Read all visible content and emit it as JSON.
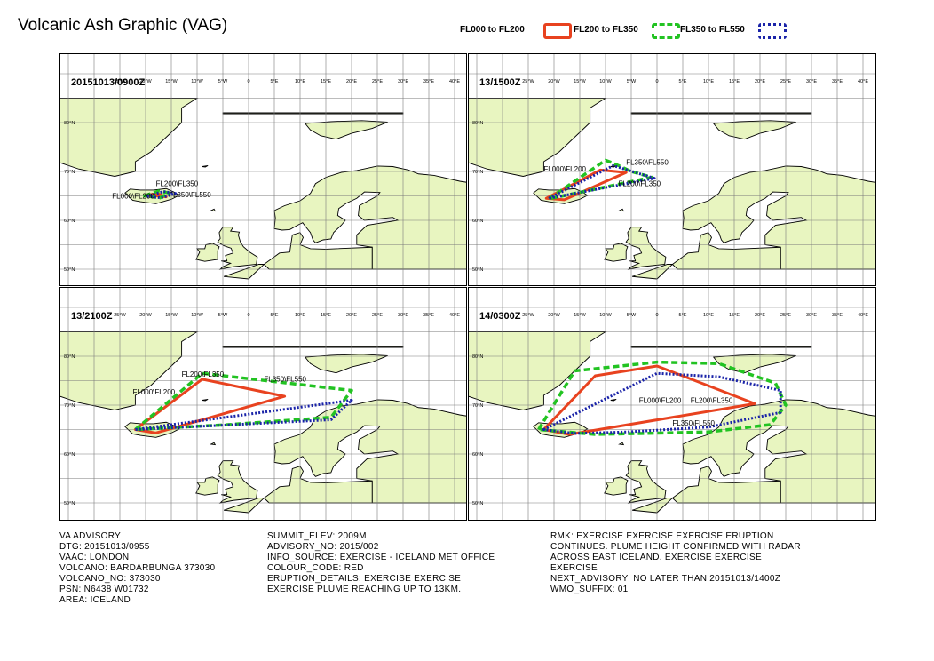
{
  "title": "Volcanic Ash Graphic (VAG)",
  "legend": [
    {
      "label": "FL000 to FL200",
      "color": "#e8421f",
      "style": "solid"
    },
    {
      "label": "FL200 to FL350",
      "color": "#22c322",
      "style": "dashed"
    },
    {
      "label": "FL350 to FL550",
      "color": "#1a23a8",
      "style": "dotted"
    }
  ],
  "map": {
    "lon_labels": [
      "25°W",
      "20°W",
      "15°W",
      "10°W",
      "5°W",
      "0",
      "5°E",
      "10°E",
      "15°E",
      "20°E",
      "25°E",
      "30°E",
      "35°E",
      "40°E"
    ],
    "lat_labels": [
      "80°N",
      "70°N",
      "60°N",
      "50°N"
    ],
    "land_color": "#e8f5c0",
    "sea_color": "#ffffff"
  },
  "panels": [
    {
      "dtg": "20151013/0900Z",
      "labels": [
        {
          "text": "FL200\\FL350",
          "lon": -18.0,
          "lat": 67.0
        },
        {
          "text": "FL000\\FL200",
          "lon": -26.5,
          "lat": 64.5
        },
        {
          "text": "FL350\\FL550",
          "lon": -15.5,
          "lat": 64.7
        }
      ],
      "polys": [
        {
          "level": 0,
          "pts": [
            [
              -20,
              65.2
            ],
            [
              -17.5,
              65.4
            ],
            [
              -16,
              64.8
            ]
          ]
        },
        {
          "level": 1,
          "pts": [
            [
              -20.2,
              65.0
            ],
            [
              -17.5,
              66.0
            ],
            [
              -15.5,
              65.6
            ],
            [
              -17.2,
              64.6
            ]
          ]
        },
        {
          "level": 2,
          "pts": [
            [
              -19.8,
              64.9
            ],
            [
              -16.5,
              65.9
            ],
            [
              -14.2,
              65.5
            ],
            [
              -17.0,
              64.6
            ]
          ]
        }
      ]
    },
    {
      "dtg": "13/1500Z",
      "labels": [
        {
          "text": "FL350\\FL550",
          "lon": -6.0,
          "lat": 71.4
        },
        {
          "text": "FL000\\FL200",
          "lon": -22.0,
          "lat": 70.0
        },
        {
          "text": "FL200\\FL350",
          "lon": -7.5,
          "lat": 67.0
        }
      ],
      "polys": [
        {
          "level": 0,
          "pts": [
            [
              -21.5,
              64.5
            ],
            [
              -18,
              64.2
            ],
            [
              -6,
              69.8
            ],
            [
              -11,
              70.3
            ]
          ]
        },
        {
          "level": 1,
          "pts": [
            [
              -21,
              64.4
            ],
            [
              -10,
              72.3
            ],
            [
              -8.5,
              71.7
            ],
            [
              -5,
              70.0
            ],
            [
              -1,
              68.8
            ]
          ]
        },
        {
          "level": 2,
          "pts": [
            [
              -21,
              64.5
            ],
            [
              -8.5,
              71.2
            ],
            [
              -0.5,
              68.6
            ]
          ]
        }
      ]
    },
    {
      "dtg": "13/2100Z",
      "labels": [
        {
          "text": "FL200\\FL350",
          "lon": -13.0,
          "lat": 75.8
        },
        {
          "text": "FL350\\FL550",
          "lon": 3.0,
          "lat": 74.8
        },
        {
          "text": "FL000\\FL200",
          "lon": -22.5,
          "lat": 72.2
        }
      ],
      "polys": [
        {
          "level": 0,
          "pts": [
            [
              -22,
              65.0
            ],
            [
              -18,
              64.3
            ],
            [
              7,
              71.8
            ],
            [
              -9,
              75.3
            ]
          ]
        },
        {
          "level": 1,
          "pts": [
            [
              -22,
              65.0
            ],
            [
              -9,
              76.5
            ],
            [
              20,
              73.0
            ],
            [
              16,
              67.5
            ],
            [
              -4,
              66.0
            ]
          ]
        },
        {
          "level": 2,
          "pts": [
            [
              -22,
              65.0
            ],
            [
              20,
              71.0
            ],
            [
              16,
              67.0
            ]
          ]
        }
      ]
    },
    {
      "dtg": "14/0300Z",
      "labels": [
        {
          "text": "FL000\\FL200",
          "lon": -3.5,
          "lat": 70.5
        },
        {
          "text": "FL200\\FL350",
          "lon": 6.5,
          "lat": 70.5
        },
        {
          "text": "FL350\\FL550",
          "lon": 3.0,
          "lat": 65.8
        }
      ],
      "polys": [
        {
          "level": 0,
          "pts": [
            [
              -22,
              65.0
            ],
            [
              -17,
              64.0
            ],
            [
              19,
              70.3
            ],
            [
              0,
              78.0
            ],
            [
              -12,
              76.0
            ]
          ]
        },
        {
          "level": 1,
          "pts": [
            [
              -23,
              65.0
            ],
            [
              -16,
              77.0
            ],
            [
              0,
              78.8
            ],
            [
              12,
              78.5
            ],
            [
              23,
              74.5
            ],
            [
              25,
              70.0
            ],
            [
              22,
              66.0
            ],
            [
              10,
              64.5
            ],
            [
              -12,
              64.0
            ]
          ]
        },
        {
          "level": 2,
          "pts": [
            [
              -22,
              65.0
            ],
            [
              0,
              76.5
            ],
            [
              12,
              75.8
            ],
            [
              24,
              73.0
            ],
            [
              24,
              68.5
            ],
            [
              10,
              65.5
            ],
            [
              -6,
              64.5
            ],
            [
              -16,
              64.2
            ]
          ]
        }
      ]
    }
  ],
  "advisory_col1": [
    "VA ADVISORY",
    "DTG: 20151013/0955",
    "VAAC: LONDON",
    "VOLCANO: BARDARBUNGA 373030",
    "VOLCANO_NO: 373030",
    "PSN: N6438 W01732",
    "AREA: ICELAND"
  ],
  "advisory_col2": [
    "SUMMIT_ELEV: 2009M",
    "ADVISORY_NO: 2015/002",
    "INFO_SOURCE: EXERCISE - ICELAND MET OFFICE",
    "COLOUR_CODE: RED",
    "ERUPTION_DETAILS: EXERCISE  EXERCISE",
    "EXERCISE PLUME REACHING UP TO 13KM."
  ],
  "advisory_col3": [
    "RMK: EXERCISE  EXERCISE  EXERCISE ERUPTION",
    "CONTINUES. PLUME HEIGHT CONFIRMED WITH RADAR",
    "ACROSS EAST ICELAND.  EXERCISE EXERCISE",
    "EXERCISE",
    "NEXT_ADVISORY: NO LATER THAN 20151013/1400Z",
    "WMO_SUFFIX: 01"
  ]
}
